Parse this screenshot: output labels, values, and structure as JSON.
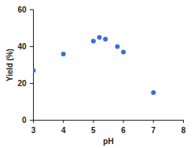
{
  "chart_data": {
    "type": "scatter",
    "x_label": "pH",
    "y_label": "Yield (%)",
    "x": [
      3,
      4,
      5,
      5.2,
      5.4,
      5.8,
      6,
      7
    ],
    "values": [
      27,
      36,
      43,
      45,
      44,
      40,
      37,
      15
    ],
    "color": "#3a6fd8",
    "marker": "circle",
    "xlim": [
      3,
      8
    ],
    "xticks": [
      3,
      4,
      5,
      6,
      7,
      8
    ],
    "ylim": [
      0,
      60
    ],
    "yticks": [
      0,
      20,
      40,
      60
    ],
    "grid": false
  }
}
